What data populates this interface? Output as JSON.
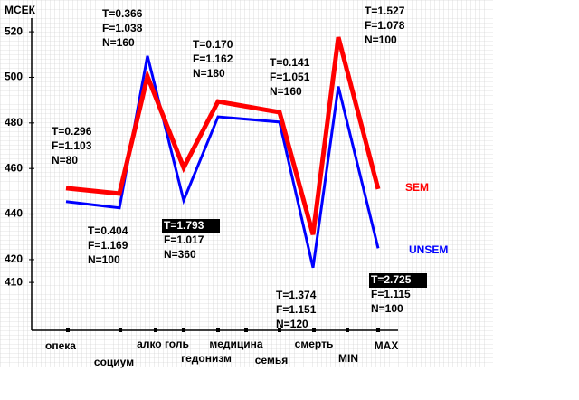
{
  "chart_data": {
    "type": "line",
    "y_label": "МСЕК",
    "categories": [
      "опека",
      "социум",
      "алко голь",
      "гедонизм",
      "медицина",
      "семья",
      "смерть",
      "MIN",
      "MAX"
    ],
    "series": [
      {
        "name": "SEM",
        "color": "#ff0000",
        "values": [
          451.4,
          449,
          500.4,
          460.4,
          489.4,
          484.7,
          431,
          517.6,
          451
        ]
      },
      {
        "name": "UNSEM",
        "color": "#0000ff",
        "values": [
          445.5,
          442.7,
          509.4,
          446,
          482.7,
          480.4,
          416.5,
          496,
          425
        ]
      }
    ],
    "ylim": [
      389,
      526
    ],
    "yticks": [
      410,
      420,
      440,
      460,
      480,
      500,
      520
    ],
    "grid": true,
    "annotations": [
      {
        "lines": [
          "T=0.296",
          "F=1.103",
          "N=80"
        ]
      },
      {
        "lines": [
          "T=0.366",
          "F=1.038",
          "N=160"
        ]
      },
      {
        "lines": [
          "T=0.404",
          "F=1.169",
          "N=100"
        ]
      },
      {
        "lines": [
          "T=0.170",
          "F=1.162",
          "N=180"
        ]
      },
      {
        "lines": [
          "T=1.793",
          "F=1.017",
          "N=360"
        ],
        "highlighted": true
      },
      {
        "lines": [
          "T=0.141",
          "F=1.051",
          "N=160"
        ]
      },
      {
        "lines": [
          "T=1.374",
          "F=1.151",
          "N=120"
        ]
      },
      {
        "lines": [
          "T=1.527",
          "F=1.078",
          "N=100"
        ]
      },
      {
        "lines": [
          "T=2.725",
          "F=1.115",
          "N=100"
        ],
        "highlighted": true
      }
    ]
  }
}
